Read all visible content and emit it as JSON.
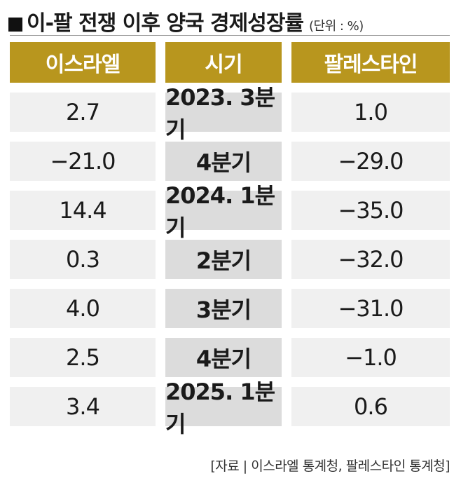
{
  "title": "이-팔 전쟁 이후 양국 경제성장률",
  "unit": "(단위 : %)",
  "source": "[자료 | 이스라엘 통계청, 팔레스타인 통계청]",
  "colors": {
    "header": "#b8961e",
    "cell": "#f0f0f0",
    "period_cell": "#dcdcdc"
  },
  "chart_data": {
    "type": "table",
    "columns": [
      "이스라엘",
      "시기",
      "팔레스타인"
    ],
    "rows": [
      [
        "2.7",
        "2023. 3분기",
        "1.0"
      ],
      [
        "−21.0",
        "4분기",
        "−29.0"
      ],
      [
        "14.4",
        "2024. 1분기",
        "−35.0"
      ],
      [
        "0.3",
        "2분기",
        "−32.0"
      ],
      [
        "4.0",
        "3분기",
        "−31.0"
      ],
      [
        "2.5",
        "4분기",
        "−1.0"
      ],
      [
        "3.4",
        "2025. 1분기",
        "0.6"
      ]
    ]
  }
}
